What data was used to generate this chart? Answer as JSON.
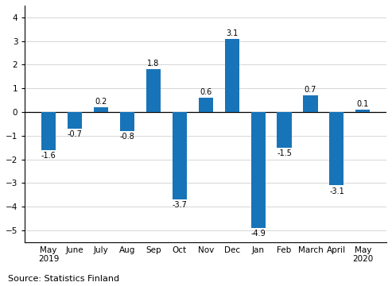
{
  "categories": [
    "May\n2019",
    "June",
    "July",
    "Aug",
    "Sep",
    "Oct",
    "Nov",
    "Dec",
    "Jan",
    "Feb",
    "March",
    "April",
    "May\n2020"
  ],
  "values": [
    -1.6,
    -0.7,
    0.2,
    -0.8,
    1.8,
    -3.7,
    0.6,
    3.1,
    -4.9,
    -1.5,
    0.7,
    -3.1,
    0.1
  ],
  "bar_color": "#1874b8",
  "ylim": [
    -5.5,
    4.5
  ],
  "yticks": [
    -5,
    -4,
    -3,
    -2,
    -1,
    0,
    1,
    2,
    3,
    4
  ],
  "source_text": "Source: Statistics Finland",
  "background_color": "#ffffff",
  "label_fontsize": 7.0,
  "tick_fontsize": 7.5,
  "source_fontsize": 8.0
}
